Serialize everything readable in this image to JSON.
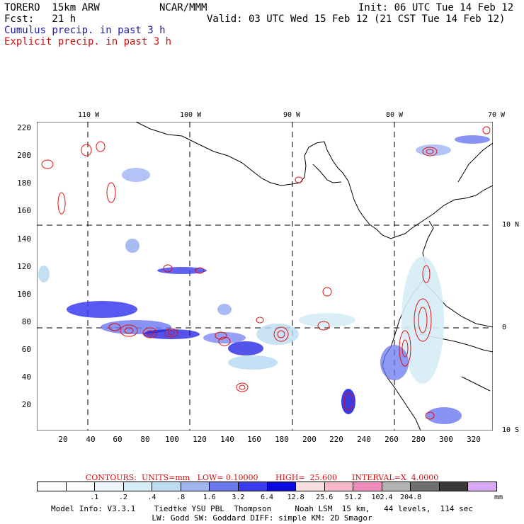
{
  "header": {
    "model": "TORERO  15km ARW",
    "org": "NCAR/MMM",
    "init": "Init: 06 UTC Tue 14 Feb 12",
    "fcst": "Fcst:   21 h",
    "valid": "Valid: 03 UTC Wed 15 Feb 12 (21 CST Tue 14 Feb 12)",
    "cumulus": "Cumulus precip. in past 3 h",
    "explicit": "Explicit precip. in past 3 h"
  },
  "axes": {
    "lon_labels": [
      "110 W",
      "100 W",
      "90 W",
      "80 W",
      "70 W"
    ],
    "lat_labels": [
      "10 N",
      "0",
      "10 S"
    ],
    "y_ticks": [
      "220",
      "200",
      "180",
      "160",
      "140",
      "120",
      "100",
      "80",
      "60",
      "40",
      "20"
    ],
    "x_ticks": [
      "20",
      "40",
      "60",
      "80",
      "100",
      "120",
      "140",
      "160",
      "180",
      "200",
      "220",
      "240",
      "260",
      "280",
      "300",
      "320"
    ]
  },
  "legend": {
    "contours": "CONTOURS:  UNITS=mm   LOW= 0.10000       HIGH=  25.600      INTERVAL=X  4.0000",
    "labels": [
      ".1",
      ".2",
      ".4",
      ".8",
      "1.6",
      "3.2",
      "6.4",
      "12.8",
      "25.6",
      "51.2",
      "102.4",
      "204.8"
    ],
    "unit": "mm",
    "colors": [
      "#ffffff",
      "#ffffff",
      "#ecf5fb",
      "#d6ecf7",
      "#bcdcf2",
      "#a0b4f2",
      "#6a78f0",
      "#3a3cf0",
      "#0a0ae0",
      "#f6dede",
      "#f7b7c9",
      "#f08cbc",
      "#b4b4b4",
      "#707070",
      "#3a3a3a",
      "#d8a8f6"
    ]
  },
  "footer": {
    "line1": "Model Info: V3.3.1    Tiedtke YSU PBL  Thompson     Noah LSM  15 km,   44 levels,  114 sec",
    "line2": "LW: Godd SW: Goddard DIFF: simple KM: 2D Smagor"
  }
}
